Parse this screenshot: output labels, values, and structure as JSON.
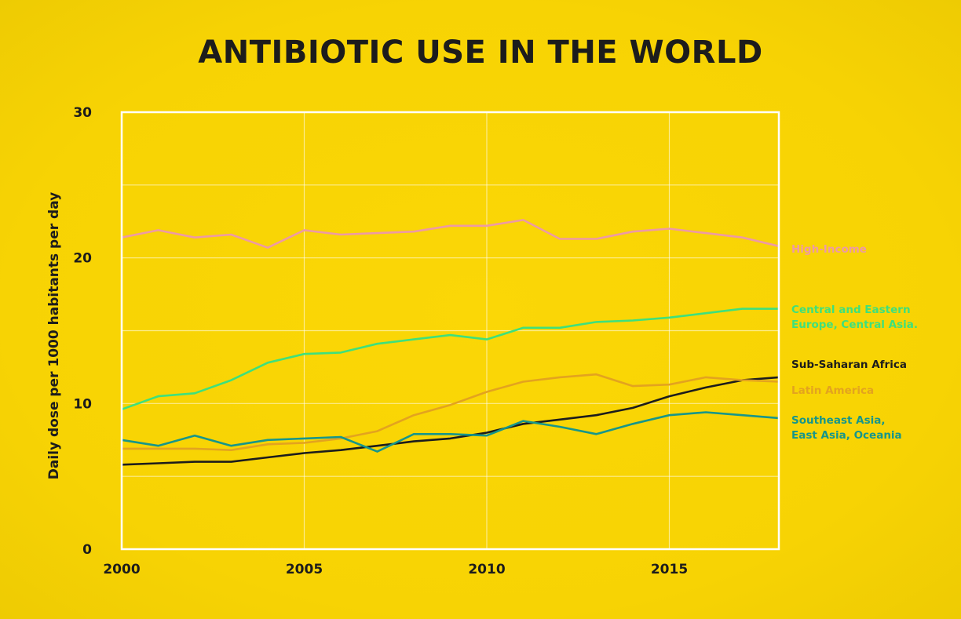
{
  "chart_data": {
    "type": "line",
    "title": "ANTIBIOTIC USE IN THE WORLD",
    "xlabel": "",
    "ylabel": "Daily dose per 1000 habitants per day",
    "xlim": [
      2000,
      2018
    ],
    "ylim": [
      0,
      30
    ],
    "x_ticks": [
      "2000",
      "2005",
      "2010",
      "2015"
    ],
    "y_ticks": [
      "0",
      "10",
      "20",
      "30"
    ],
    "grid": true,
    "x": [
      2000,
      2001,
      2002,
      2003,
      2004,
      2005,
      2006,
      2007,
      2008,
      2009,
      2010,
      2011,
      2012,
      2013,
      2014,
      2015,
      2016,
      2017,
      2018
    ],
    "series": [
      {
        "name": "High-Income",
        "label_lines": [
          "High-Income"
        ],
        "color": "#ee9aa4",
        "values": [
          21.4,
          21.9,
          21.4,
          21.6,
          20.7,
          21.9,
          21.6,
          21.7,
          21.8,
          22.2,
          22.2,
          22.6,
          21.3,
          21.3,
          21.8,
          22.0,
          21.7,
          21.4,
          20.8
        ]
      },
      {
        "name": "Central and Eastern Europe, Central Asia.",
        "label_lines": [
          "Central and Eastern",
          "Europe, Central Asia."
        ],
        "color": "#3ee07c",
        "values": [
          9.6,
          10.5,
          10.7,
          11.6,
          12.8,
          13.4,
          13.5,
          14.1,
          14.4,
          14.7,
          14.4,
          15.2,
          15.2,
          15.6,
          15.7,
          15.9,
          16.2,
          16.5,
          16.5
        ]
      },
      {
        "name": "Sub-Saharan Africa",
        "label_lines": [
          "Sub-Saharan Africa"
        ],
        "color": "#1c1c1c",
        "values": [
          5.8,
          5.9,
          6.0,
          6.0,
          6.3,
          6.6,
          6.8,
          7.1,
          7.4,
          7.6,
          8.0,
          8.6,
          8.9,
          9.2,
          9.7,
          10.5,
          11.1,
          11.6,
          11.8
        ]
      },
      {
        "name": "Latin America",
        "label_lines": [
          "Latin America"
        ],
        "color": "#e3a31f",
        "values": [
          6.9,
          6.9,
          6.9,
          6.8,
          7.2,
          7.3,
          7.6,
          8.1,
          9.2,
          9.9,
          10.8,
          11.5,
          11.8,
          12.0,
          11.2,
          11.3,
          11.8,
          11.6,
          11.5
        ]
      },
      {
        "name": "Southeast Asia, East Asia, Oceania",
        "label_lines": [
          "Southeast Asia,",
          "East Asia, Oceania"
        ],
        "color": "#17968a",
        "values": [
          7.5,
          7.1,
          7.8,
          7.1,
          7.5,
          7.6,
          7.7,
          6.7,
          7.9,
          7.9,
          7.8,
          8.8,
          8.4,
          7.9,
          8.6,
          9.2,
          9.4,
          9.2,
          9.0
        ]
      }
    ]
  }
}
